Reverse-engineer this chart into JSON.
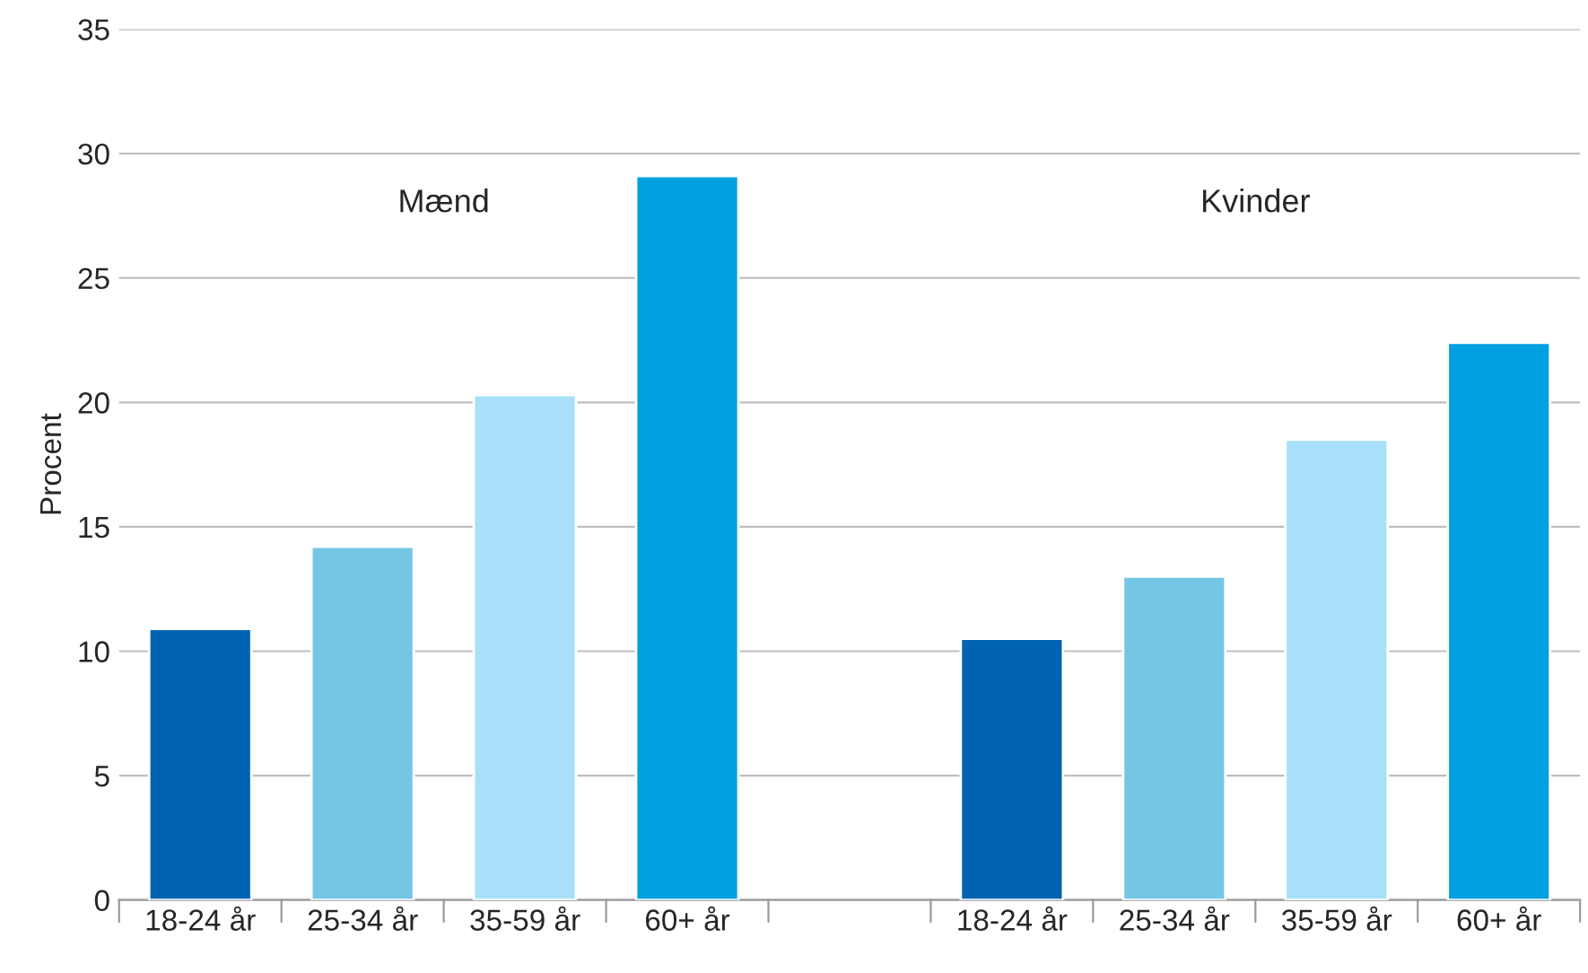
{
  "chart_data": {
    "type": "bar",
    "ylabel": "Procent",
    "categories": [
      "18-24 år",
      "25-34 år",
      "35-59 år",
      "60+ år",
      null,
      "18-24 år",
      "25-34 år",
      "35-59 år",
      "60+ år"
    ],
    "values": [
      10.9,
      14.2,
      20.3,
      29.1,
      null,
      10.5,
      13.0,
      18.5,
      22.4
    ],
    "colors": [
      "#0063b1",
      "#75c6e5",
      "#a9e0f9",
      "#009fdf",
      "#ffffff",
      "#0063b1",
      "#75c6e5",
      "#a9e0f9",
      "#009fdf"
    ],
    "annotations": [
      "Mænd",
      "Kvinder"
    ],
    "ylim": [
      0,
      35
    ],
    "yticks": [
      0,
      5,
      10,
      15,
      20,
      25,
      30,
      35
    ],
    "grid": "y",
    "legend": false
  }
}
